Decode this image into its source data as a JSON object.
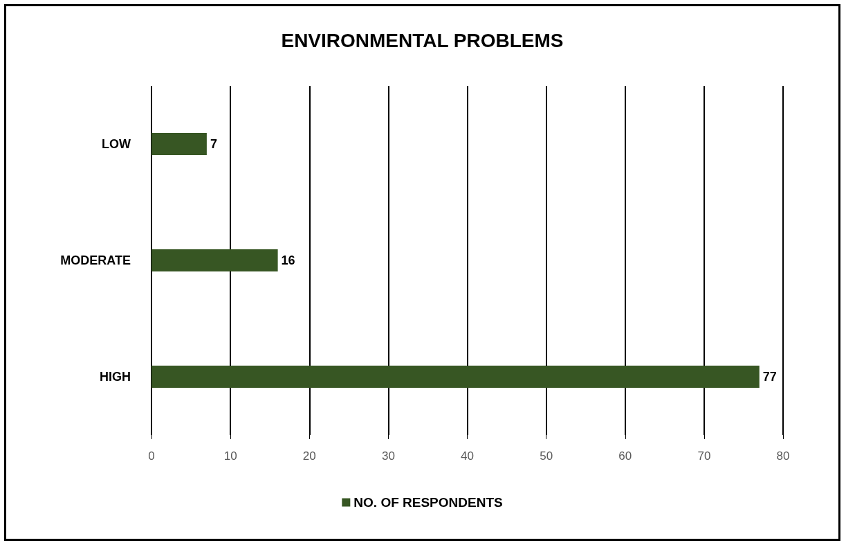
{
  "chart_data": {
    "type": "bar",
    "orientation": "horizontal",
    "title": "ENVIRONMENTAL PROBLEMS",
    "categories": [
      "LOW",
      "MODERATE",
      "HIGH"
    ],
    "series": [
      {
        "name": "NO. OF RESPONDENTS",
        "color": "#375623",
        "values": [
          7,
          16,
          77
        ]
      }
    ],
    "xlim": [
      0,
      80
    ],
    "xticks": [
      0,
      10,
      20,
      30,
      40,
      50,
      60,
      70,
      80
    ],
    "grid": "x",
    "legend": "bottom",
    "data_labels": true
  }
}
